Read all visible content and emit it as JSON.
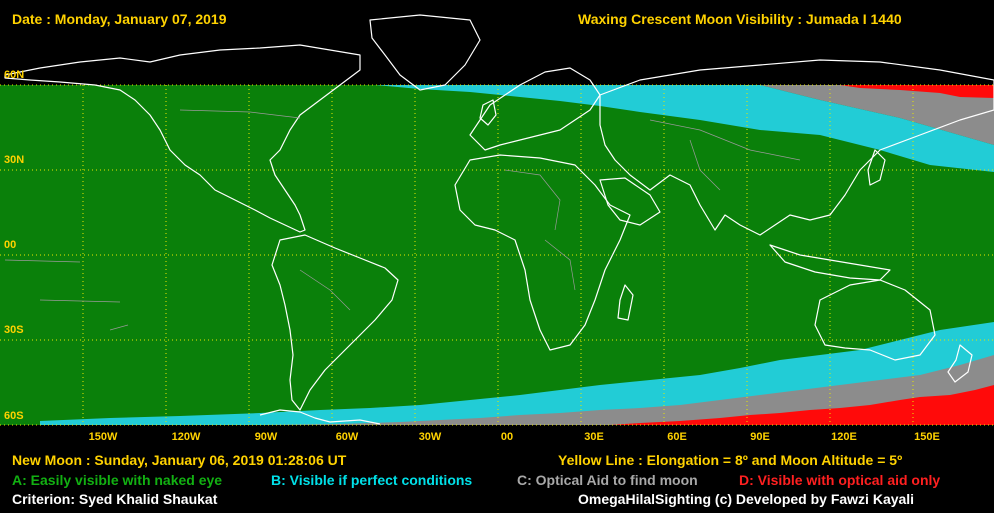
{
  "header": {
    "date": "Date : Monday, January 07, 2019",
    "title": "Waxing Crescent Moon Visibility : Jumada I 1440"
  },
  "lat_labels": [
    "60N",
    "30N",
    "00",
    "30S",
    "60S"
  ],
  "lon_labels": [
    "150W",
    "120W",
    "90W",
    "60W",
    "30W",
    "00",
    "30E",
    "60E",
    "90E",
    "120E",
    "150E"
  ],
  "footer": {
    "new_moon": "New Moon : Sunday, January 06, 2019  01:28:06  UT",
    "yellow_line": "Yellow Line : Elongation = 8º and Moon Altitude = 5º",
    "legend_a": "A: Easily visible with naked eye",
    "legend_b": "B: Visible if perfect conditions",
    "legend_c": "C: Optical Aid to find moon",
    "legend_d": "D: Visible with optical aid only",
    "criterion": "Criterion: Syed Khalid Shaukat",
    "credit": "OmegaHilalSighting  (c)  Developed by Fawzi Kayali"
  },
  "colors": {
    "zone_a": "#0a800a",
    "zone_b": "#22ccd6",
    "zone_c": "#8c8c8c",
    "zone_d": "#ff0a0a",
    "grid": "#e8e800",
    "coast": "#ffffff",
    "borders": "#9a9a9a"
  }
}
